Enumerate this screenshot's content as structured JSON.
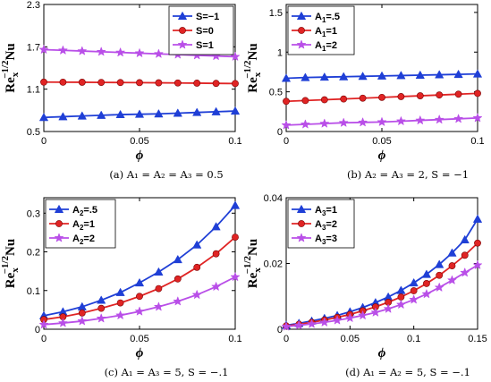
{
  "colors": {
    "blue": "#1f3fd6",
    "red": "#e02424",
    "purple": "#b94fe8"
  },
  "chart_data": [
    {
      "id": "a",
      "type": "line",
      "caption": "(a) A₁ = A₂ = A₃ = 0.5",
      "ylabel_main": "Re",
      "ylabel_sub": "x",
      "ylabel_sup": "−1/2",
      "ylabel_tail": "Nu",
      "xlabel": "ϕ",
      "xlim": [
        0,
        0.1
      ],
      "ylim": [
        0.5,
        2.3
      ],
      "xticks": [
        0,
        0.05,
        0.1
      ],
      "xticklabels": [
        "0",
        "0.05",
        "0.1"
      ],
      "yticks": [
        0.5,
        1.1,
        1.7,
        2.3
      ],
      "yticklabels": [
        "0.5",
        "1.1",
        "1.7",
        "2.3"
      ],
      "legend_position": "top-right",
      "x": [
        0,
        0.01,
        0.02,
        0.03,
        0.04,
        0.05,
        0.06,
        0.07,
        0.08,
        0.09,
        0.1
      ],
      "series": [
        {
          "name": "S=−1",
          "marker": "triangle",
          "color": "blue",
          "values": [
            0.7,
            0.71,
            0.72,
            0.73,
            0.74,
            0.745,
            0.75,
            0.76,
            0.77,
            0.78,
            0.79
          ]
        },
        {
          "name": "S=0",
          "marker": "circle",
          "color": "red",
          "values": [
            1.2,
            1.199,
            1.198,
            1.196,
            1.194,
            1.192,
            1.19,
            1.188,
            1.185,
            1.182,
            1.18
          ]
        },
        {
          "name": "S=1",
          "marker": "star",
          "color": "purple",
          "values": [
            1.66,
            1.65,
            1.64,
            1.63,
            1.62,
            1.61,
            1.6,
            1.59,
            1.58,
            1.57,
            1.56
          ]
        }
      ]
    },
    {
      "id": "b",
      "type": "line",
      "caption": "(b) A₂ = A₃ = 2, S = −1",
      "ylabel_main": "Re",
      "ylabel_sub": "x",
      "ylabel_sup": "−1/2",
      "ylabel_tail": "Nu",
      "xlabel": "ϕ",
      "xlim": [
        0,
        0.1
      ],
      "ylim": [
        0,
        1.6
      ],
      "xticks": [
        0,
        0.05,
        0.1
      ],
      "xticklabels": [
        "0",
        "0.05",
        "0.1"
      ],
      "yticks": [
        0,
        0.5,
        1,
        1.5
      ],
      "yticklabels": [
        "0",
        "0.5",
        "1",
        "1.5"
      ],
      "legend_position": "top-left",
      "x": [
        0,
        0.01,
        0.02,
        0.03,
        0.04,
        0.05,
        0.06,
        0.07,
        0.08,
        0.09,
        0.1
      ],
      "series": [
        {
          "name_main": "A",
          "name_sub": "1",
          "name_tail": "=.5",
          "marker": "triangle",
          "color": "blue",
          "values": [
            0.67,
            0.68,
            0.685,
            0.69,
            0.695,
            0.7,
            0.705,
            0.71,
            0.715,
            0.72,
            0.725
          ]
        },
        {
          "name_main": "A",
          "name_sub": "1",
          "name_tail": "=1",
          "marker": "circle",
          "color": "red",
          "values": [
            0.38,
            0.39,
            0.4,
            0.41,
            0.42,
            0.43,
            0.44,
            0.45,
            0.46,
            0.47,
            0.48
          ]
        },
        {
          "name_main": "A",
          "name_sub": "1",
          "name_tail": "=2",
          "marker": "star",
          "color": "purple",
          "values": [
            0.08,
            0.09,
            0.1,
            0.11,
            0.115,
            0.12,
            0.13,
            0.14,
            0.15,
            0.16,
            0.17
          ]
        }
      ]
    },
    {
      "id": "c",
      "type": "line",
      "caption": "(c) A₁ = A₃ = 5, S = −.1",
      "ylabel_main": "Re",
      "ylabel_sub": "x",
      "ylabel_sup": "−1/2",
      "ylabel_tail": "Nu",
      "xlabel": "ϕ",
      "xlim": [
        0,
        0.1
      ],
      "ylim": [
        0,
        0.34
      ],
      "xticks": [
        0,
        0.05,
        0.1
      ],
      "xticklabels": [
        "0",
        "0.05",
        "0.1"
      ],
      "yticks": [
        0,
        0.1,
        0.2,
        0.3
      ],
      "yticklabels": [
        "0",
        "0.1",
        "0.2",
        "0.3"
      ],
      "legend_position": "top-left",
      "x": [
        0,
        0.01,
        0.02,
        0.03,
        0.04,
        0.05,
        0.06,
        0.07,
        0.08,
        0.09,
        0.1
      ],
      "series": [
        {
          "name_main": "A",
          "name_sub": "2",
          "name_tail": "=.5",
          "marker": "triangle",
          "color": "blue",
          "values": [
            0.035,
            0.045,
            0.058,
            0.075,
            0.095,
            0.12,
            0.148,
            0.18,
            0.218,
            0.265,
            0.32
          ]
        },
        {
          "name_main": "A",
          "name_sub": "2",
          "name_tail": "=1",
          "marker": "circle",
          "color": "red",
          "values": [
            0.025,
            0.032,
            0.042,
            0.054,
            0.068,
            0.085,
            0.105,
            0.13,
            0.16,
            0.195,
            0.238
          ]
        },
        {
          "name_main": "A",
          "name_sub": "2",
          "name_tail": "=2",
          "marker": "star",
          "color": "purple",
          "values": [
            0.012,
            0.016,
            0.021,
            0.028,
            0.036,
            0.046,
            0.058,
            0.072,
            0.089,
            0.11,
            0.135
          ]
        }
      ]
    },
    {
      "id": "d",
      "type": "line",
      "caption": "(d) A₁ = A₂ = 5, S = −.1",
      "ylabel_main": "Re",
      "ylabel_sub": "x",
      "ylabel_sup": "−1/2",
      "ylabel_tail": "Nu",
      "xlabel": "ϕ",
      "xlim": [
        0,
        0.15
      ],
      "ylim": [
        0,
        0.04
      ],
      "xticks": [
        0,
        0.05,
        0.1,
        0.15
      ],
      "xticklabels": [
        "0",
        "0.05",
        "0.1",
        "0.15"
      ],
      "yticks": [
        0,
        0.02,
        0.04
      ],
      "yticklabels": [
        "0",
        "0.02",
        "0.04"
      ],
      "legend_position": "top-left",
      "x": [
        0,
        0.01,
        0.02,
        0.03,
        0.04,
        0.05,
        0.06,
        0.07,
        0.08,
        0.09,
        0.1,
        0.11,
        0.12,
        0.13,
        0.14,
        0.15
      ],
      "series": [
        {
          "name_main": "A",
          "name_sub": "3",
          "name_tail": "=1",
          "marker": "triangle",
          "color": "blue",
          "values": [
            0.0012,
            0.0018,
            0.0025,
            0.0033,
            0.0042,
            0.0053,
            0.0066,
            0.0081,
            0.0098,
            0.0118,
            0.0141,
            0.0167,
            0.0197,
            0.0232,
            0.0272,
            0.0335
          ]
        },
        {
          "name_main": "A",
          "name_sub": "3",
          "name_tail": "=2",
          "marker": "circle",
          "color": "red",
          "values": [
            0.001,
            0.0015,
            0.0021,
            0.0028,
            0.0036,
            0.0045,
            0.0056,
            0.0068,
            0.0082,
            0.0098,
            0.0117,
            0.0139,
            0.0164,
            0.0193,
            0.0225,
            0.0262
          ]
        },
        {
          "name_main": "A",
          "name_sub": "3",
          "name_tail": "=3",
          "marker": "star",
          "color": "purple",
          "values": [
            0.0008,
            0.0012,
            0.0016,
            0.0021,
            0.0027,
            0.0034,
            0.0042,
            0.0051,
            0.0062,
            0.0075,
            0.009,
            0.0107,
            0.0127,
            0.0149,
            0.0172,
            0.0195
          ]
        }
      ]
    }
  ]
}
